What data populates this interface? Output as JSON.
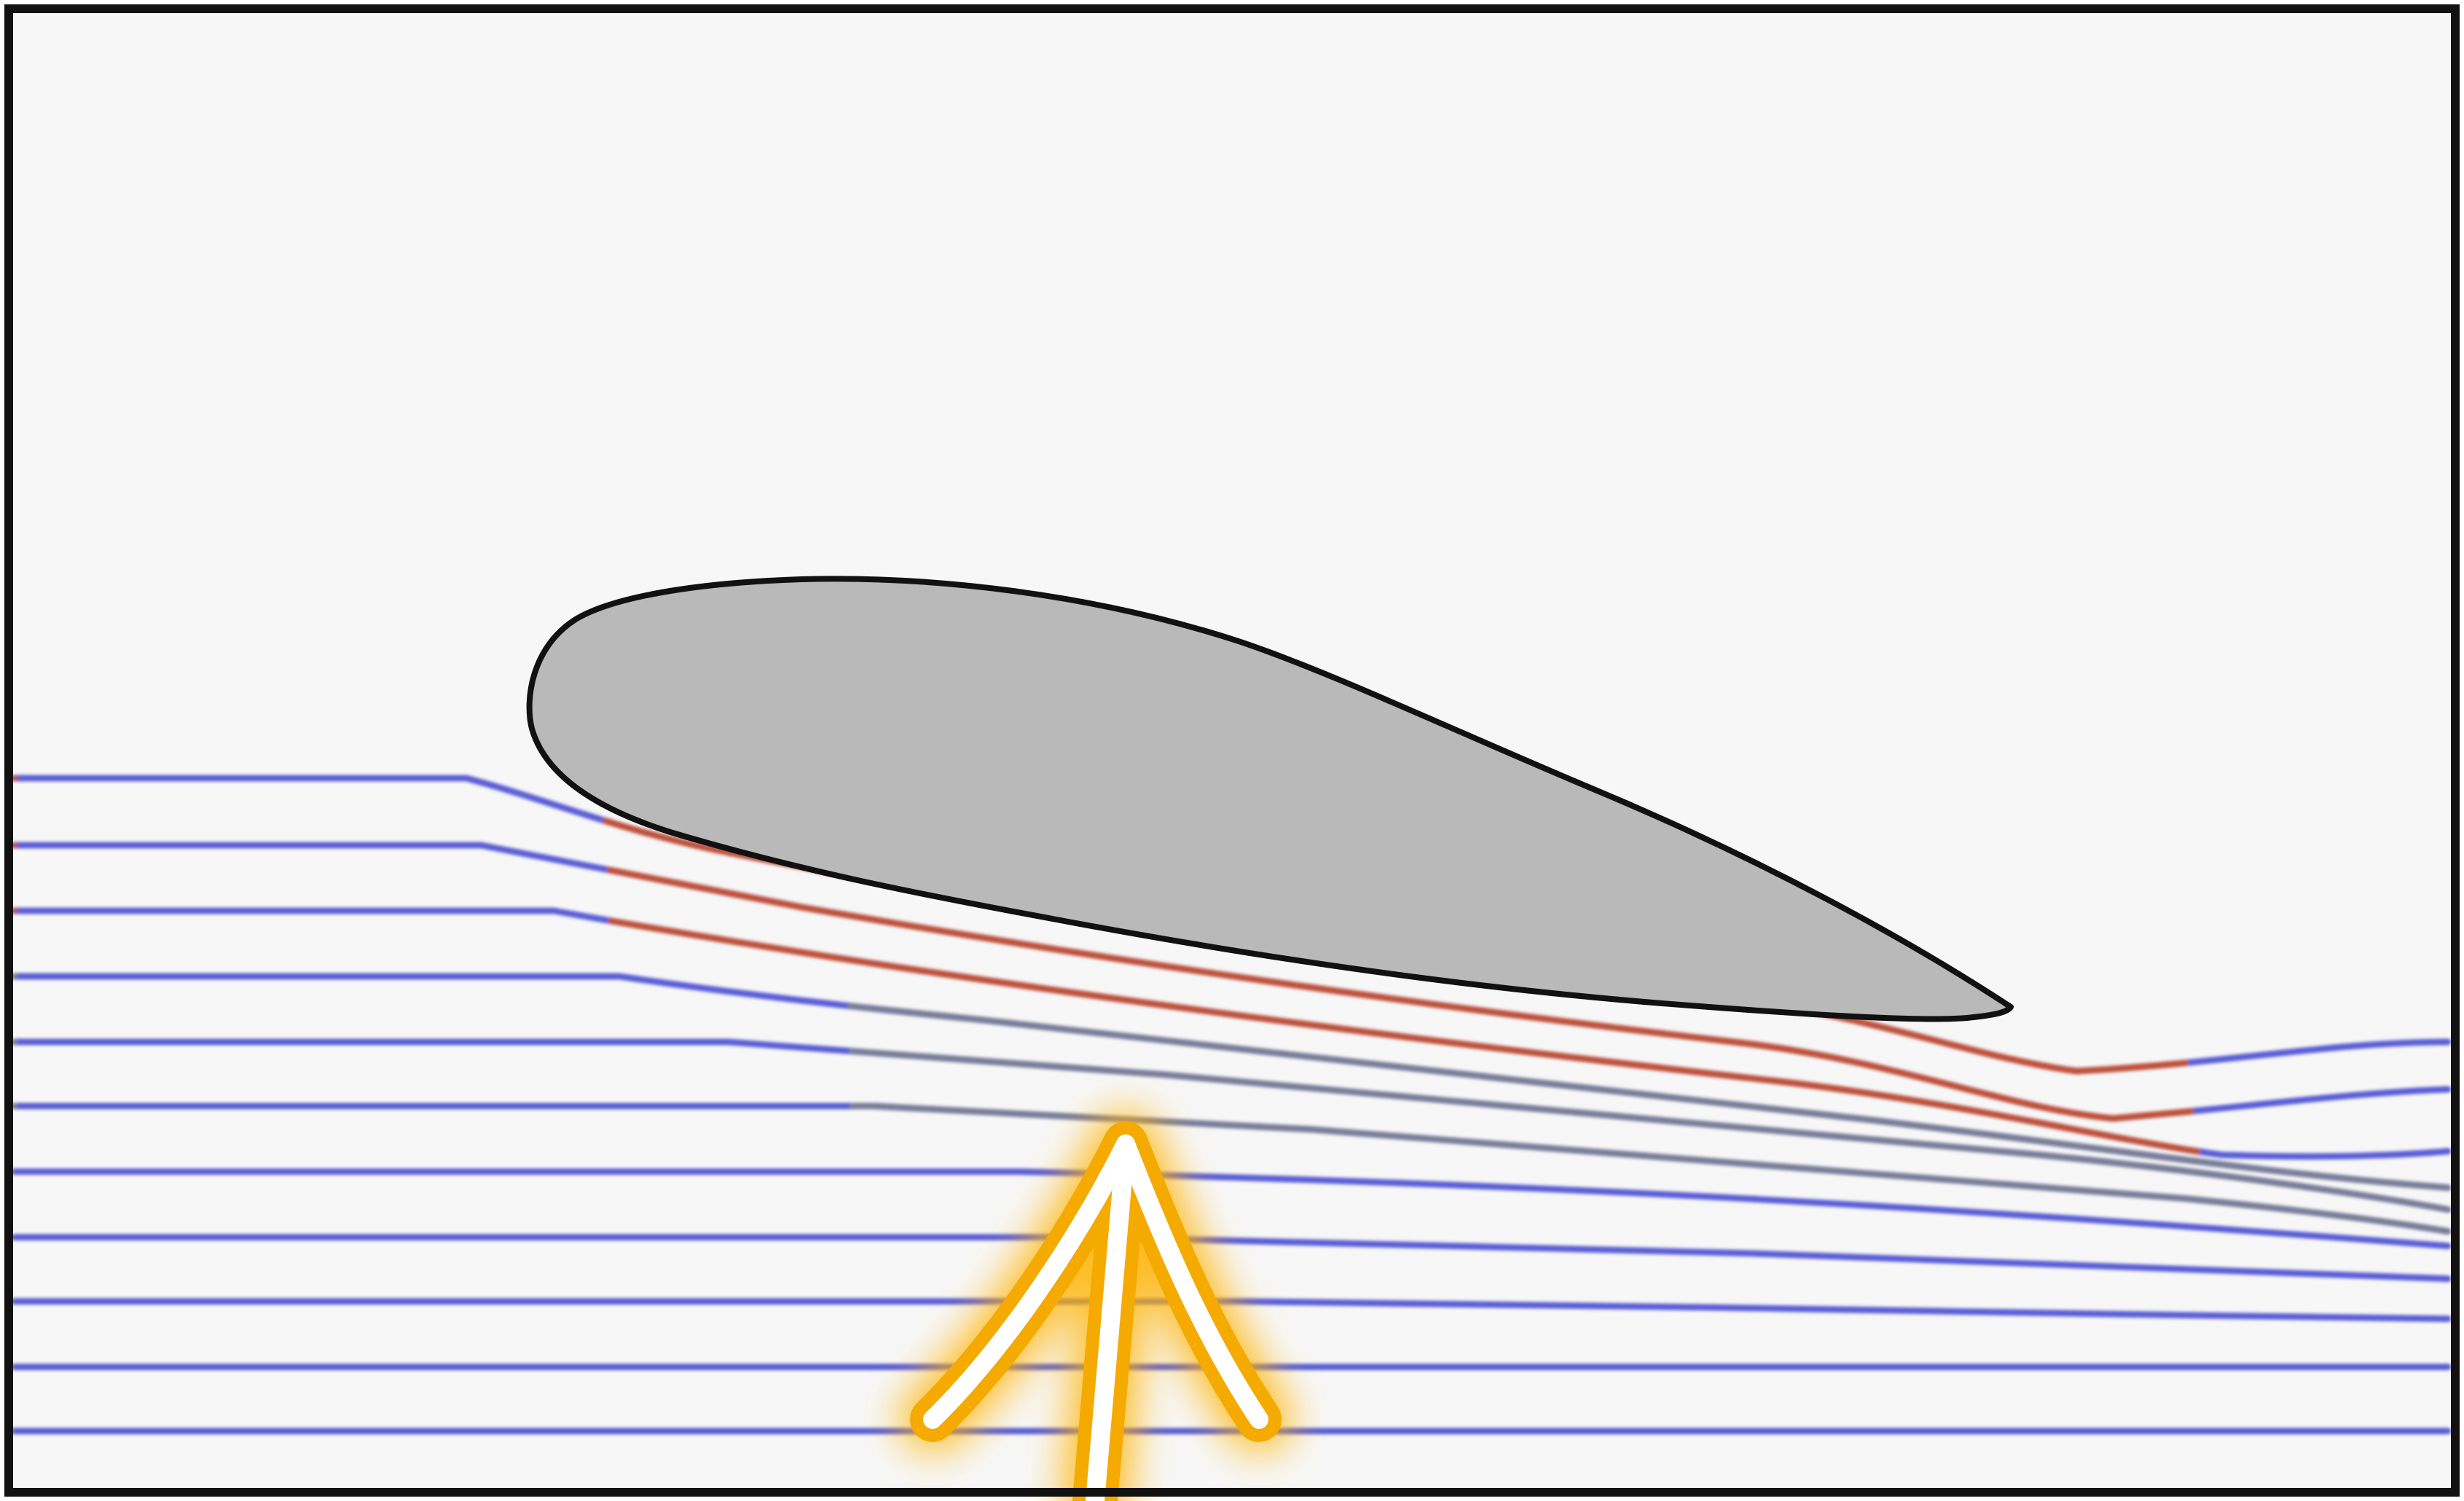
{
  "diagram": {
    "type": "airfoil-flow-streamlines",
    "background_color": "#f7f7f7",
    "border_color": "#111111",
    "airfoil": {
      "fill_color": "#b9b9b9",
      "outline_color": "#111111"
    },
    "streamlines": {
      "count": 11,
      "free_stream_color": "#5b5fd6",
      "near_surface_color": "#c9502a",
      "wake_color": "#7c8294"
    },
    "arrow": {
      "direction": "up",
      "stroke_color": "#ffffff",
      "outline_color": "#f5aa00",
      "glow_color": "#ffb300"
    }
  }
}
